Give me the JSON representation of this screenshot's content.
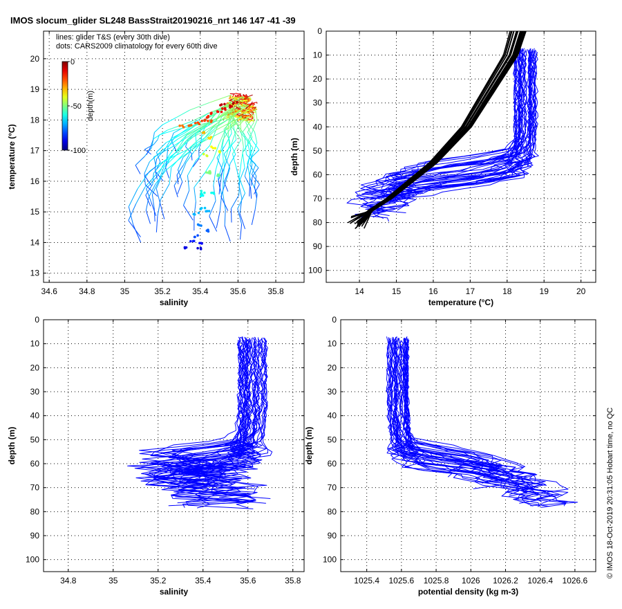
{
  "title": "IMOS slocum_glider SL248 BassStrait20190216_nrt 146  147  -41  -39",
  "credit": "© IMOS 18-Oct-2019 20:31:05 Hobart time, no QC",
  "colors": {
    "profile_line": "#0000ff",
    "climatology_line": "#000000",
    "axis": "#000000",
    "grid": "#000000",
    "background": "#ffffff"
  },
  "chart_data": [
    {
      "id": "ts",
      "type": "scatter",
      "xlabel": "salinity",
      "ylabel": "temperature (°C)",
      "xlim": [
        34.57,
        35.95
      ],
      "ylim": [
        12.7,
        20.9
      ],
      "xticks": [
        34.6,
        34.8,
        35,
        35.2,
        35.4,
        35.6,
        35.8
      ],
      "yticks": [
        13,
        14,
        15,
        16,
        17,
        18,
        19,
        20
      ],
      "grid": true,
      "legend_text": [
        "lines: glider T&S (every 30th dive)",
        "dots: CARS2009 climatology for every 60th dive"
      ],
      "colorbar": {
        "label": "depth(m)",
        "ticks": [
          0,
          -50,
          -100
        ],
        "range": [
          -100,
          0
        ],
        "colormap": "jet"
      },
      "lines_description_count": 40,
      "climatology_points": [
        {
          "s": 35.56,
          "t": 18.45,
          "d": -8
        },
        {
          "s": 35.53,
          "t": 18.35,
          "d": -10
        },
        {
          "s": 35.5,
          "t": 18.28,
          "d": -12
        },
        {
          "s": 35.47,
          "t": 18.2,
          "d": -14
        },
        {
          "s": 35.44,
          "t": 18.1,
          "d": -16
        },
        {
          "s": 35.41,
          "t": 18.0,
          "d": -18
        },
        {
          "s": 35.38,
          "t": 17.9,
          "d": -20
        },
        {
          "s": 35.34,
          "t": 17.8,
          "d": -22
        },
        {
          "s": 35.3,
          "t": 17.78,
          "d": -24
        },
        {
          "s": 35.52,
          "t": 18.5,
          "d": -6
        },
        {
          "s": 35.58,
          "t": 18.55,
          "d": -5
        },
        {
          "s": 35.45,
          "t": 17.95,
          "d": -20
        },
        {
          "s": 35.42,
          "t": 17.6,
          "d": -30
        },
        {
          "s": 35.45,
          "t": 17.4,
          "d": -34
        },
        {
          "s": 35.47,
          "t": 17.1,
          "d": -38
        },
        {
          "s": 35.49,
          "t": 16.95,
          "d": -40
        },
        {
          "s": 35.43,
          "t": 16.85,
          "d": -42
        },
        {
          "s": 35.46,
          "t": 16.3,
          "d": -50
        },
        {
          "s": 35.49,
          "t": 16.2,
          "d": -52
        },
        {
          "s": 35.44,
          "t": 16.25,
          "d": -50
        },
        {
          "s": 35.42,
          "t": 15.65,
          "d": -60
        },
        {
          "s": 35.46,
          "t": 15.6,
          "d": -61
        },
        {
          "s": 35.4,
          "t": 15.55,
          "d": -62
        },
        {
          "s": 35.41,
          "t": 15.1,
          "d": -68
        },
        {
          "s": 35.44,
          "t": 15.0,
          "d": -70
        },
        {
          "s": 35.38,
          "t": 14.95,
          "d": -70
        },
        {
          "s": 35.4,
          "t": 14.55,
          "d": -75
        },
        {
          "s": 35.43,
          "t": 14.4,
          "d": -78
        },
        {
          "s": 35.38,
          "t": 14.2,
          "d": -80
        },
        {
          "s": 35.36,
          "t": 14.05,
          "d": -85
        },
        {
          "s": 35.4,
          "t": 13.95,
          "d": -88
        },
        {
          "s": 35.33,
          "t": 13.85,
          "d": -90
        },
        {
          "s": 35.39,
          "t": 13.8,
          "d": -92
        }
      ]
    },
    {
      "id": "temp",
      "type": "line",
      "xlabel": "temperature (°C)",
      "ylabel": "depth (m)",
      "xlim": [
        13.1,
        20.4
      ],
      "ylim": [
        0,
        105
      ],
      "y_reversed": true,
      "xticks": [
        14,
        15,
        16,
        17,
        18,
        19,
        20
      ],
      "yticks": [
        0,
        10,
        20,
        30,
        40,
        50,
        60,
        70,
        80,
        90,
        100
      ],
      "grid": true,
      "climatology_profile": {
        "depth": [
          0,
          5,
          10,
          15,
          20,
          25,
          30,
          35,
          40,
          45,
          50,
          55,
          60,
          65,
          70,
          75,
          80
        ],
        "t": [
          18.3,
          18.2,
          18.1,
          17.9,
          17.7,
          17.5,
          17.3,
          17.1,
          16.9,
          16.6,
          16.3,
          16.0,
          15.6,
          15.2,
          14.8,
          14.3,
          13.9
        ]
      },
      "glider_profile": {
        "depth": [
          8,
          15,
          25,
          35,
          45,
          50,
          55,
          58,
          60,
          62,
          65,
          70,
          75
        ],
        "t": [
          18.5,
          18.5,
          18.5,
          18.5,
          18.5,
          18.4,
          18.1,
          17.2,
          16.2,
          15.5,
          15.0,
          14.6,
          14.4
        ]
      }
    },
    {
      "id": "sal",
      "type": "line",
      "xlabel": "salinity",
      "ylabel": "depth (m)",
      "xlim": [
        34.69,
        35.85
      ],
      "ylim": [
        0,
        105
      ],
      "y_reversed": true,
      "xticks": [
        34.8,
        35,
        35.2,
        35.4,
        35.6,
        35.8
      ],
      "yticks": [
        0,
        10,
        20,
        30,
        40,
        50,
        60,
        70,
        80,
        90,
        100
      ],
      "grid": true,
      "glider_profile": {
        "depth": [
          8,
          20,
          40,
          52,
          56,
          58,
          60,
          62,
          65,
          70,
          75,
          80
        ],
        "s": [
          35.62,
          35.62,
          35.62,
          35.6,
          35.55,
          35.4,
          35.2,
          35.25,
          35.4,
          35.45,
          35.48,
          35.5
        ]
      }
    },
    {
      "id": "dens",
      "type": "line",
      "xlabel": "potential density (kg m-3)",
      "ylabel": "depth (m)",
      "xlim": [
        1025.25,
        1026.72
      ],
      "ylim": [
        0,
        105
      ],
      "y_reversed": true,
      "xticks": [
        1025.4,
        1025.6,
        1025.8,
        1026,
        1026.2,
        1026.4,
        1026.6
      ],
      "yticks": [
        0,
        10,
        20,
        30,
        40,
        50,
        60,
        70,
        80,
        90,
        100
      ],
      "grid": true,
      "glider_profile": {
        "depth": [
          8,
          20,
          40,
          52,
          56,
          58,
          60,
          62,
          65,
          70,
          75,
          80
        ],
        "rho": [
          1025.58,
          1025.58,
          1025.58,
          1025.6,
          1025.65,
          1025.8,
          1025.95,
          1026.05,
          1026.15,
          1026.3,
          1026.4,
          1026.48
        ]
      }
    }
  ]
}
